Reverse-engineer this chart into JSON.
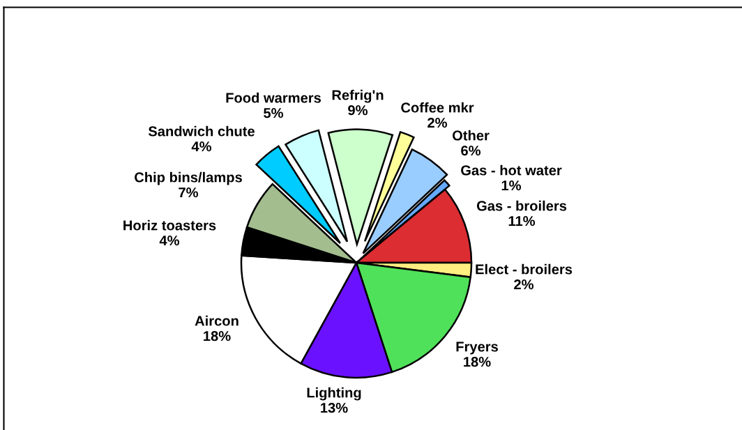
{
  "chart_data": {
    "type": "pie",
    "categories": [
      "Gas - broilers",
      "Elect - broilers",
      "Fryers",
      "Lighting",
      "Aircon",
      "Horiz toasters",
      "Chip bins/lamps",
      "Sandwich chute",
      "Food warmers",
      "Refrig'n",
      "Coffee mkr",
      "Other",
      "Gas - hot water"
    ],
    "values": [
      11,
      2,
      18,
      13,
      18,
      4,
      7,
      4,
      5,
      9,
      2,
      6,
      1
    ],
    "value_labels": [
      "11%",
      "2%",
      "18%",
      "13%",
      "18%",
      "4%",
      "7%",
      "4%",
      "5%",
      "9%",
      "2%",
      "6%",
      "1%"
    ],
    "colors": [
      "#dc2d32",
      "#ffee80",
      "#50e15a",
      "#6a12ff",
      "#ffffff",
      "#000000",
      "#a3bd8f",
      "#00ccff",
      "#ccffff",
      "#ccffcc",
      "#ffff99",
      "#99ccff",
      "#66aaff"
    ]
  }
}
